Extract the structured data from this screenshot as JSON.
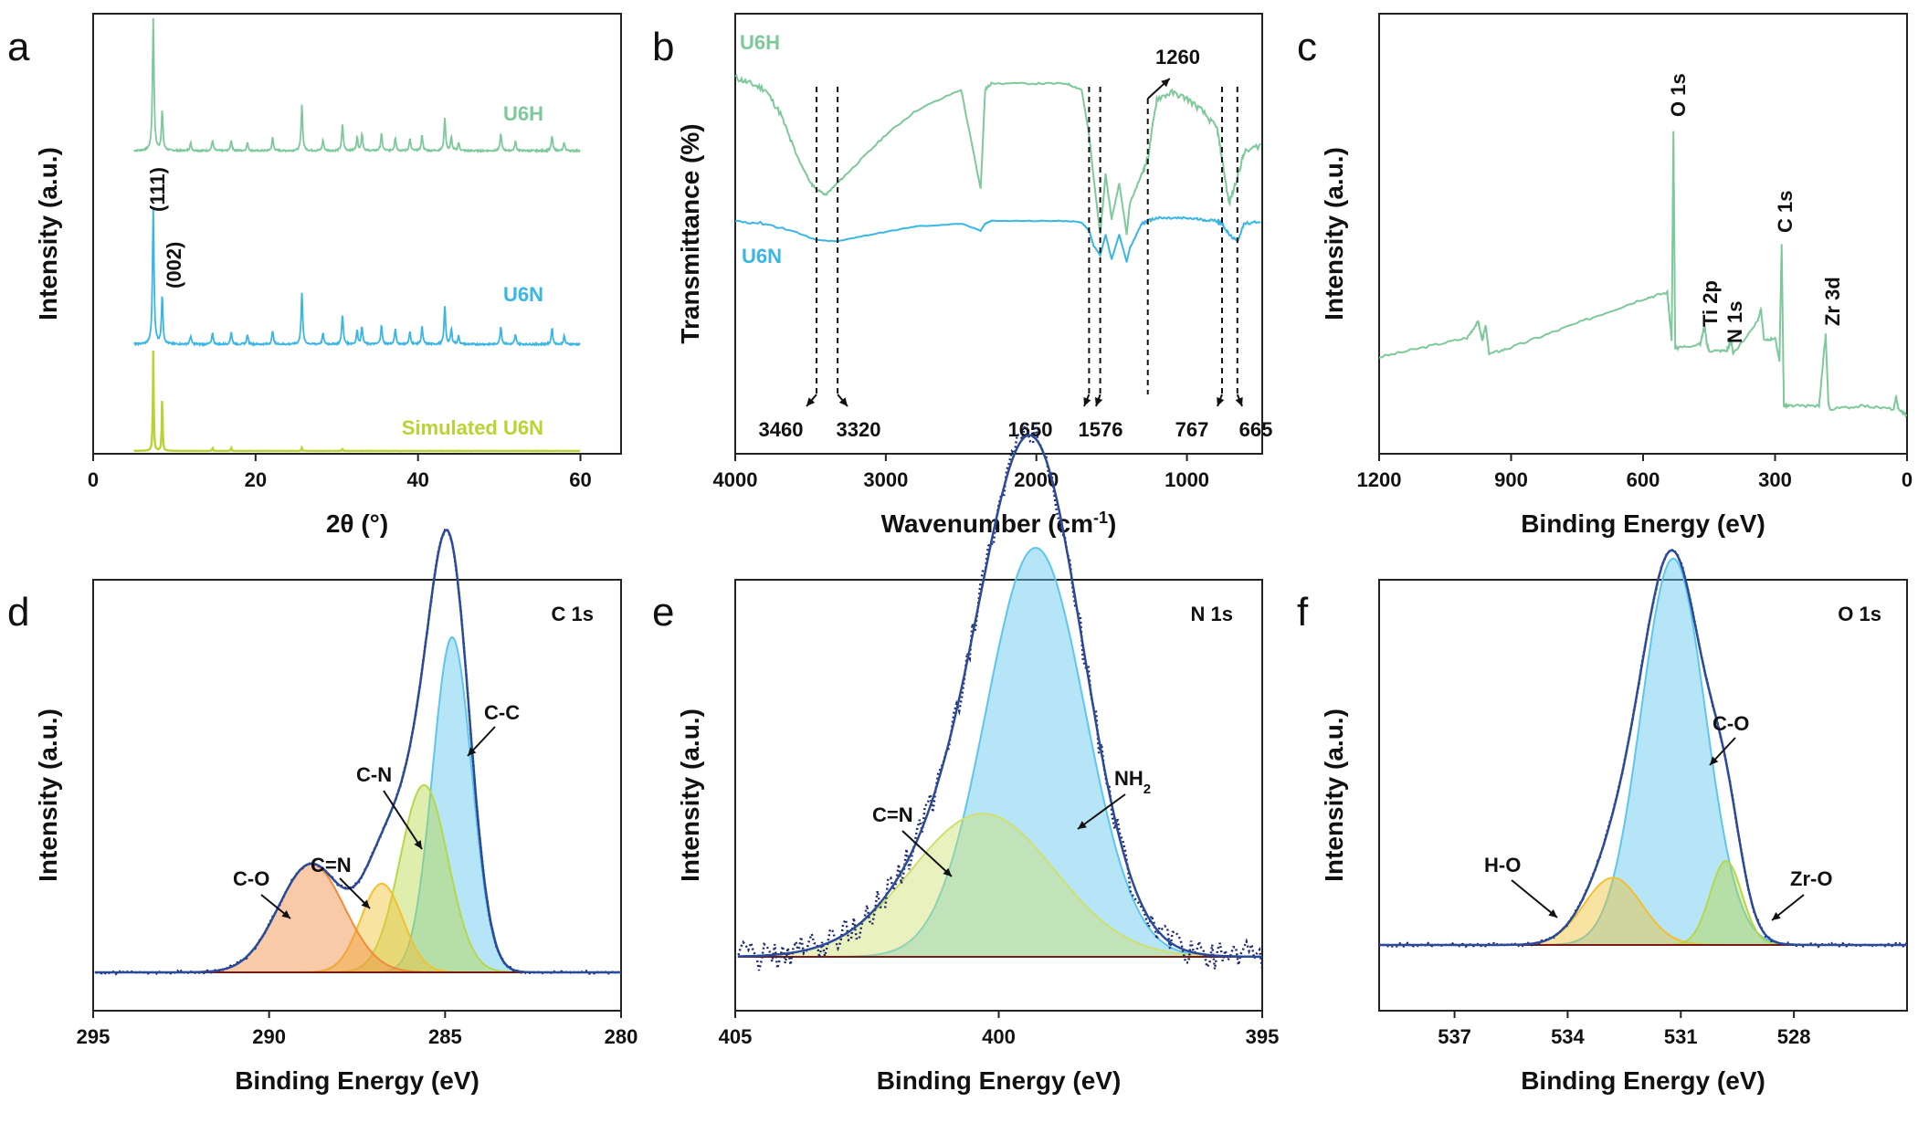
{
  "colors": {
    "u6h": "#7ec99a",
    "u6n": "#39b6e3",
    "simulated": "#b7d432",
    "xps_envelope": "#2b4a9a",
    "xps_raw": "#1f2a6b",
    "baseline": "#7a1a12",
    "fill_cc": "#5cc6ec",
    "fill_cn": "#b8d64a",
    "fill_ceqn": "#f2c030",
    "fill_co": "#f08a3c",
    "fill_nh2": "#5cc6ec",
    "fill_ceqn_n": "#cfe070",
    "fill_co_o": "#5cc6ec",
    "fill_ho": "#f2c030",
    "fill_zro": "#b8d64a"
  },
  "chart_data": [
    {
      "panel": "a",
      "type": "line",
      "xlabel": "2θ (°)",
      "ylabel": "Intensity (a.u.)",
      "xlim": [
        0,
        65
      ],
      "xticks": [
        0,
        20,
        40,
        60
      ],
      "series": [
        {
          "name": "U6H",
          "peaks": [
            [
              7.4,
              1.0
            ],
            [
              8.5,
              0.3
            ],
            [
              12.0,
              0.06
            ],
            [
              14.7,
              0.08
            ],
            [
              17.0,
              0.08
            ],
            [
              19.0,
              0.06
            ],
            [
              22.1,
              0.1
            ],
            [
              25.7,
              0.35
            ],
            [
              28.3,
              0.08
            ],
            [
              30.7,
              0.2
            ],
            [
              32.5,
              0.1
            ],
            [
              33.1,
              0.13
            ],
            [
              35.5,
              0.13
            ],
            [
              37.2,
              0.1
            ],
            [
              39.0,
              0.09
            ],
            [
              40.5,
              0.12
            ],
            [
              43.3,
              0.25
            ],
            [
              44.1,
              0.1
            ],
            [
              45.0,
              0.06
            ],
            [
              50.2,
              0.13
            ],
            [
              52.0,
              0.07
            ],
            [
              56.5,
              0.11
            ],
            [
              58.0,
              0.06
            ]
          ]
        },
        {
          "name": "U6N",
          "peaks": [
            [
              7.4,
              1.0
            ],
            [
              8.5,
              0.35
            ],
            [
              12.0,
              0.06
            ],
            [
              14.7,
              0.08
            ],
            [
              17.0,
              0.09
            ],
            [
              19.0,
              0.07
            ],
            [
              22.1,
              0.1
            ],
            [
              25.7,
              0.38
            ],
            [
              28.3,
              0.08
            ],
            [
              30.7,
              0.22
            ],
            [
              32.5,
              0.1
            ],
            [
              33.1,
              0.13
            ],
            [
              35.5,
              0.14
            ],
            [
              37.2,
              0.11
            ],
            [
              39.0,
              0.09
            ],
            [
              40.5,
              0.13
            ],
            [
              43.3,
              0.28
            ],
            [
              44.1,
              0.11
            ],
            [
              45.0,
              0.06
            ],
            [
              50.2,
              0.13
            ],
            [
              52.0,
              0.07
            ],
            [
              56.5,
              0.12
            ],
            [
              58.0,
              0.06
            ]
          ]
        },
        {
          "name": "Simulated U6N",
          "peaks": [
            [
              7.4,
              1.0
            ],
            [
              8.5,
              0.55
            ],
            [
              14.7,
              0.03
            ],
            [
              17.0,
              0.03
            ],
            [
              25.7,
              0.03
            ],
            [
              30.7,
              0.02
            ]
          ]
        }
      ],
      "annotations": [
        "(111)",
        "(002)"
      ]
    },
    {
      "panel": "b",
      "type": "line",
      "xlabel": "Wavenumber (cm",
      "xlabel_sup": "-1",
      "xlabel_end": ")",
      "ylabel": "Transmittance (%)",
      "xlim": [
        4000,
        500
      ],
      "xticks": [
        4000,
        3000,
        2000,
        1000
      ],
      "series": [
        {
          "name": "U6H",
          "x": [
            4000,
            3900,
            3800,
            3700,
            3600,
            3500,
            3460,
            3400,
            3320,
            3200,
            3000,
            2800,
            2500,
            2370,
            2340,
            2300,
            2000,
            1800,
            1700,
            1650,
            1600,
            1576,
            1540,
            1500,
            1450,
            1400,
            1380,
            1300,
            1260,
            1200,
            1100,
            1000,
            900,
            800,
            767,
            720,
            665,
            620,
            500
          ],
          "y": [
            0.97,
            0.95,
            0.93,
            0.85,
            0.72,
            0.62,
            0.6,
            0.58,
            0.62,
            0.68,
            0.78,
            0.86,
            0.93,
            0.6,
            0.93,
            0.95,
            0.95,
            0.95,
            0.93,
            0.78,
            0.55,
            0.45,
            0.65,
            0.5,
            0.62,
            0.45,
            0.55,
            0.65,
            0.7,
            0.9,
            0.92,
            0.9,
            0.86,
            0.8,
            0.7,
            0.55,
            0.64,
            0.72,
            0.75
          ]
        },
        {
          "name": "U6N",
          "x": [
            4000,
            3800,
            3600,
            3460,
            3320,
            3200,
            3000,
            2800,
            2500,
            2370,
            2340,
            2300,
            2000,
            1800,
            1700,
            1650,
            1620,
            1576,
            1540,
            1500,
            1450,
            1400,
            1380,
            1300,
            1260,
            1200,
            1100,
            1000,
            900,
            800,
            767,
            720,
            665,
            620,
            500
          ],
          "y": [
            0.4,
            0.38,
            0.32,
            0.26,
            0.25,
            0.28,
            0.32,
            0.36,
            0.38,
            0.33,
            0.38,
            0.4,
            0.4,
            0.4,
            0.39,
            0.33,
            0.22,
            0.15,
            0.3,
            0.12,
            0.3,
            0.1,
            0.2,
            0.38,
            0.4,
            0.42,
            0.42,
            0.42,
            0.41,
            0.4,
            0.38,
            0.3,
            0.25,
            0.38,
            0.4
          ]
        }
      ],
      "annotations": [
        "3460",
        "3320",
        "1650",
        "1576",
        "1260",
        "767",
        "665"
      ]
    },
    {
      "panel": "c",
      "type": "line",
      "xlabel": "Binding Energy (eV)",
      "ylabel": "Intensity (a.u.)",
      "xlim": [
        1200,
        0
      ],
      "xticks": [
        1200,
        900,
        600,
        300,
        0
      ],
      "series": [
        {
          "name": "survey",
          "x": [
            1200,
            1100,
            1000,
            975,
            965,
            958,
            950,
            900,
            800,
            700,
            600,
            545,
            535,
            531,
            527,
            520,
            470,
            460,
            455,
            450,
            410,
            400,
            395,
            340,
            332,
            325,
            300,
            290,
            285,
            280,
            260,
            200,
            185,
            182,
            179,
            175,
            100,
            30,
            25,
            20,
            0
          ],
          "y": [
            0.25,
            0.28,
            0.31,
            0.36,
            0.3,
            0.35,
            0.26,
            0.28,
            0.33,
            0.38,
            0.43,
            0.45,
            0.3,
            0.95,
            0.28,
            0.28,
            0.29,
            0.35,
            0.29,
            0.27,
            0.27,
            0.3,
            0.26,
            0.36,
            0.4,
            0.3,
            0.31,
            0.24,
            0.6,
            0.1,
            0.1,
            0.1,
            0.32,
            0.22,
            0.11,
            0.09,
            0.1,
            0.09,
            0.13,
            0.09,
            0.07
          ]
        }
      ],
      "annotations": [
        "O 1s",
        "C 1s",
        "Ti 2p",
        "N 1s",
        "Zr 3d"
      ]
    },
    {
      "panel": "d",
      "type": "area",
      "title": "C 1s",
      "xlabel": "Binding Energy (eV)",
      "ylabel": "Intensity (a.u.)",
      "xlim": [
        295,
        280
      ],
      "xticks": [
        295,
        290,
        285,
        280
      ],
      "components": [
        {
          "name": "C-C",
          "center": 284.8,
          "height": 0.68,
          "fwhm": 1.3
        },
        {
          "name": "C-N",
          "center": 285.6,
          "height": 0.38,
          "fwhm": 1.6
        },
        {
          "name": "C=N",
          "center": 286.8,
          "height": 0.18,
          "fwhm": 1.4
        },
        {
          "name": "C-O",
          "center": 288.8,
          "height": 0.22,
          "fwhm": 2.2
        }
      ]
    },
    {
      "panel": "e",
      "type": "area",
      "title": "N 1s",
      "xlabel": "Binding Energy (eV)",
      "ylabel": "Intensity (a.u.)",
      "xlim": [
        405,
        395
      ],
      "xticks": [
        405,
        400,
        395
      ],
      "components": [
        {
          "name": "NH",
          "name_sub": "2",
          "center": 399.3,
          "height": 0.8,
          "fwhm": 2.2
        },
        {
          "name": "C=N",
          "center": 400.3,
          "height": 0.28,
          "fwhm": 3.2
        }
      ]
    },
    {
      "panel": "f",
      "type": "area",
      "title": "O 1s",
      "xlabel": "Binding Energy (eV)",
      "ylabel": "Intensity (a.u.)",
      "xlim": [
        539,
        525
      ],
      "xticks": [
        537,
        534,
        531,
        528
      ],
      "components": [
        {
          "name": "C-O",
          "center": 531.2,
          "height": 0.92,
          "fwhm": 2.0
        },
        {
          "name": "H-O",
          "center": 532.8,
          "height": 0.16,
          "fwhm": 1.8
        },
        {
          "name": "Zr-O",
          "center": 529.8,
          "height": 0.2,
          "fwhm": 1.0
        }
      ]
    }
  ]
}
